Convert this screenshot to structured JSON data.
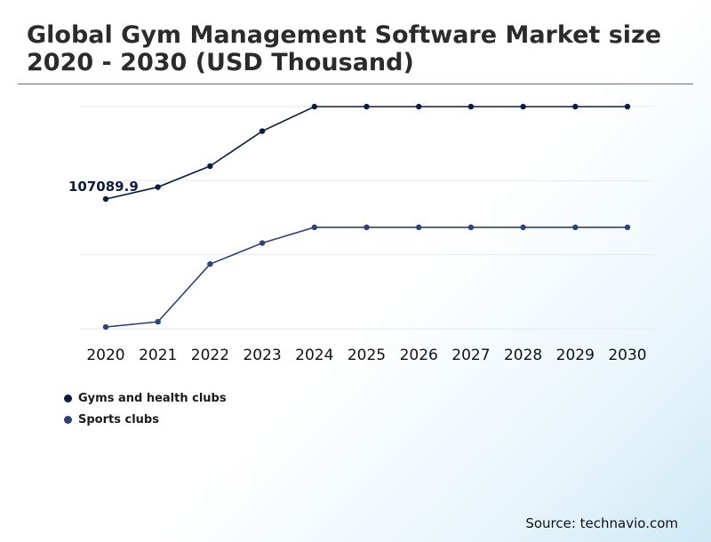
{
  "chart_data": {
    "type": "line",
    "title": "Global Gym Management Software Market size 2020 - 2030 (USD Thousand)",
    "x": [
      "2020",
      "2021",
      "2022",
      "2023",
      "2024",
      "2025",
      "2026",
      "2027",
      "2028",
      "2029",
      "2030"
    ],
    "series": [
      {
        "name": "Gyms and health clubs",
        "color": "#0d1b3e",
        "values": [
          107089.9,
          110500,
          116500,
          126500,
          133500,
          133500,
          133500,
          133500,
          133500,
          133500,
          133500
        ]
      },
      {
        "name": "Sports clubs",
        "color": "#2e4373",
        "values": [
          70500,
          72000,
          88500,
          94500,
          99000,
          99000,
          99000,
          99000,
          99000,
          99000,
          99000
        ]
      }
    ],
    "annotations": [
      {
        "series": 0,
        "index": 0,
        "text": "107089.9"
      }
    ],
    "ylim": [
      70000,
      133500
    ],
    "grid": true,
    "legend": "bottom-left"
  },
  "source": "Source: technavio.com"
}
